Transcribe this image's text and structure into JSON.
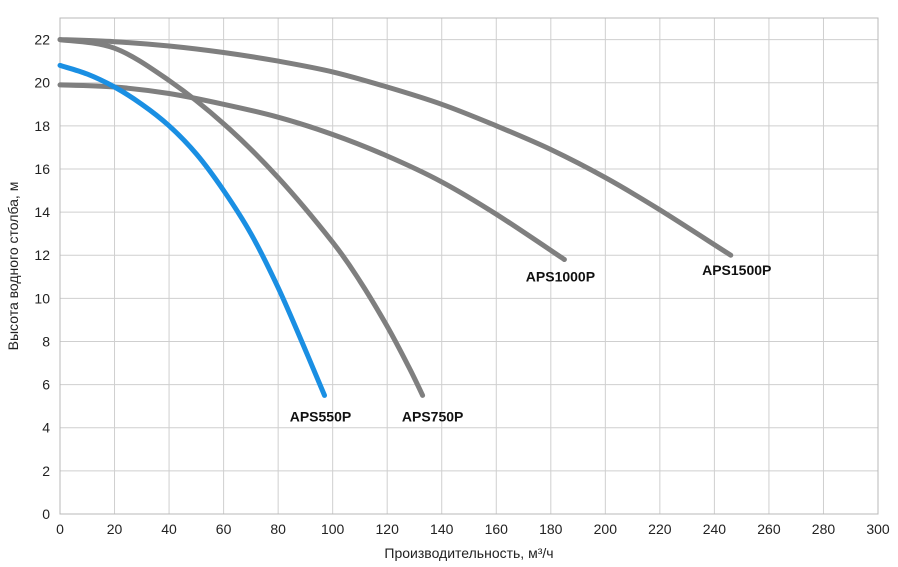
{
  "chart_data": {
    "type": "line",
    "xlabel": "Производительность, м³/ч",
    "ylabel": "Высота водного столба, м",
    "xlim": [
      0,
      300
    ],
    "ylim": [
      0,
      23
    ],
    "x_ticks": [
      0,
      20,
      40,
      60,
      80,
      100,
      120,
      140,
      160,
      180,
      200,
      220,
      240,
      260,
      280,
      300
    ],
    "y_ticks": [
      0,
      2,
      4,
      6,
      8,
      10,
      12,
      14,
      16,
      18,
      20,
      22
    ],
    "grid": true,
    "legend": "none",
    "series": [
      {
        "name": "APS550P",
        "color": "#1a8fe3",
        "x": [
          0,
          10,
          20,
          30,
          40,
          50,
          60,
          70,
          80,
          90,
          97
        ],
        "y": [
          20.8,
          20.4,
          19.8,
          19.0,
          18.0,
          16.7,
          15.0,
          13.0,
          10.5,
          7.6,
          5.5
        ]
      },
      {
        "name": "APS750P",
        "color": "#7f7f7f",
        "x": [
          0,
          20,
          40,
          60,
          80,
          100,
          110,
          120,
          128,
          133
        ],
        "y": [
          22.0,
          21.6,
          20.1,
          18.1,
          15.6,
          12.6,
          10.8,
          8.7,
          6.8,
          5.5
        ]
      },
      {
        "name": "APS1000P",
        "color": "#7f7f7f",
        "x": [
          0,
          20,
          40,
          60,
          80,
          100,
          120,
          140,
          160,
          185
        ],
        "y": [
          19.9,
          19.8,
          19.5,
          19.0,
          18.4,
          17.6,
          16.6,
          15.4,
          13.9,
          11.8
        ]
      },
      {
        "name": "APS1500P",
        "color": "#7f7f7f",
        "x": [
          0,
          20,
          40,
          60,
          80,
          100,
          120,
          140,
          160,
          180,
          200,
          220,
          246
        ],
        "y": [
          22.0,
          21.9,
          21.7,
          21.4,
          21.0,
          20.5,
          19.8,
          19.0,
          18.0,
          16.9,
          15.6,
          14.1,
          12.0
        ]
      }
    ]
  }
}
